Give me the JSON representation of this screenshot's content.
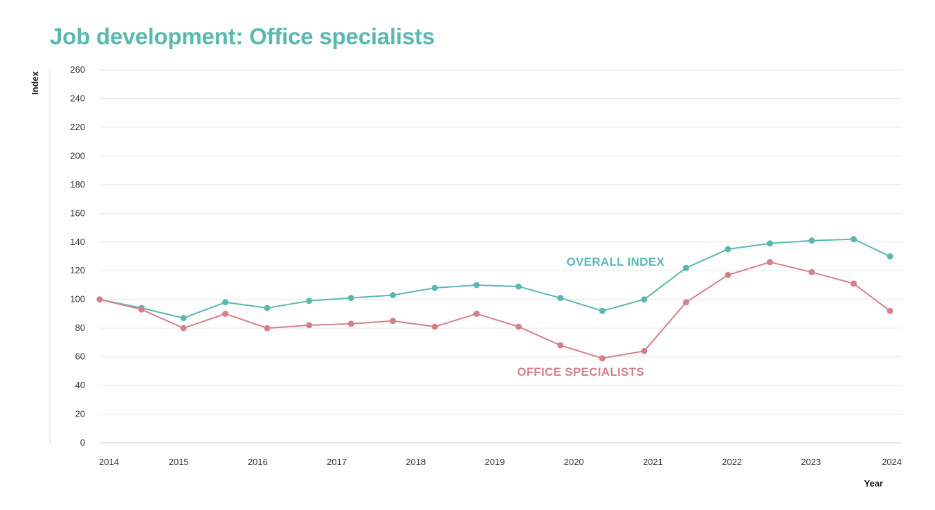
{
  "chart_data": {
    "type": "line",
    "title": "Job development: Office specialists",
    "xlabel": "Year",
    "ylabel": "Index",
    "ylim": [
      0,
      260
    ],
    "yticks": [
      0,
      20,
      40,
      60,
      80,
      100,
      120,
      140,
      160,
      180,
      200,
      220,
      240,
      260
    ],
    "xlim": [
      2014,
      2024
    ],
    "xticks": [
      2014,
      2015,
      2016,
      2017,
      2018,
      2019,
      2020,
      2021,
      2022,
      2023,
      2024
    ],
    "grid": true,
    "series": [
      {
        "name": "OVERALL INDEX",
        "color": "#5ab8b0",
        "x": [
          2014,
          2014.53,
          2015.06,
          2015.59,
          2016.12,
          2016.65,
          2017.18,
          2017.71,
          2018.24,
          2018.77,
          2019.3,
          2019.83,
          2020.36,
          2020.89,
          2021.42,
          2021.95,
          2022.48,
          2023.01,
          2023.54,
          2024
        ],
        "values": [
          100,
          94,
          87,
          98,
          94,
          99,
          101,
          103,
          108,
          110,
          109,
          101,
          92,
          100,
          122,
          135,
          139,
          141,
          142,
          130
        ]
      },
      {
        "name": "OFFICE SPECIALISTS",
        "color": "#d4808a",
        "x": [
          2014,
          2014.53,
          2015.06,
          2015.59,
          2016.12,
          2016.65,
          2017.18,
          2017.71,
          2018.24,
          2018.77,
          2019.3,
          2019.83,
          2020.36,
          2020.89,
          2021.42,
          2021.95,
          2022.48,
          2023.01,
          2023.54,
          2024
        ],
        "values": [
          100,
          93,
          80,
          90,
          80,
          82,
          83,
          85,
          81,
          90,
          81,
          68,
          59,
          64,
          98,
          117,
          126,
          119,
          111,
          92
        ]
      }
    ]
  }
}
